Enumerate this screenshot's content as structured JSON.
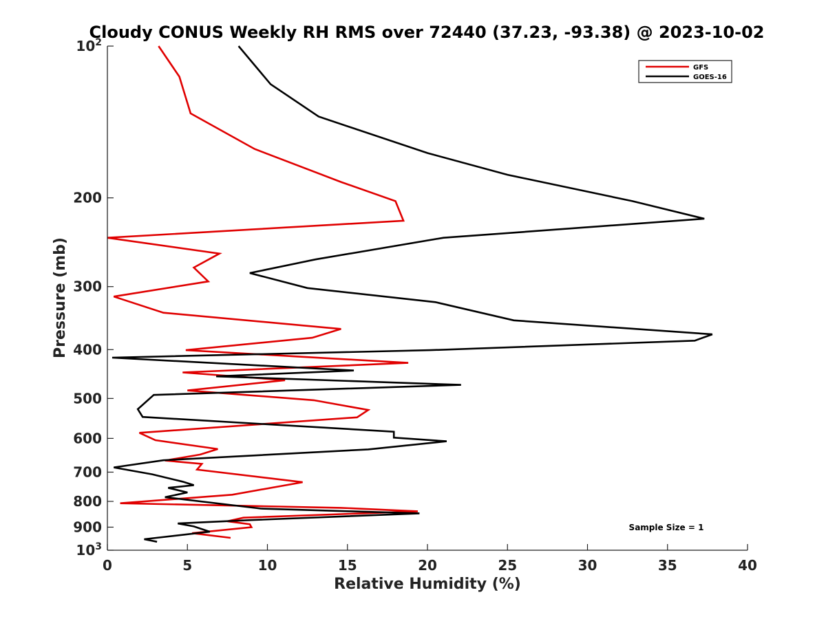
{
  "chart_data": {
    "type": "line",
    "title": "Cloudy CONUS Weekly RH RMS over 72440 (37.23, -93.38) @ 2023-10-02",
    "xlabel": "Relative Humidity (%)",
    "ylabel": "Pressure (mb)",
    "xlim": [
      0,
      40
    ],
    "ylim": [
      1000,
      100
    ],
    "y_scale": "log",
    "x_ticks": [
      "0",
      "5",
      "10",
      "15",
      "20",
      "25",
      "30",
      "35",
      "40"
    ],
    "y_ticks": [
      {
        "value": 100,
        "label": "10",
        "sup": "2"
      },
      {
        "value": 200,
        "label": "200",
        "sup": ""
      },
      {
        "value": 300,
        "label": "300",
        "sup": ""
      },
      {
        "value": 400,
        "label": "400",
        "sup": ""
      },
      {
        "value": 500,
        "label": "500",
        "sup": ""
      },
      {
        "value": 600,
        "label": "600",
        "sup": ""
      },
      {
        "value": 700,
        "label": "700",
        "sup": ""
      },
      {
        "value": 800,
        "label": "800",
        "sup": ""
      },
      {
        "value": 900,
        "label": "900",
        "sup": ""
      },
      {
        "value": 1000,
        "label": "10",
        "sup": "3"
      }
    ],
    "legend_position": "top-right",
    "grid": false,
    "annotation": "Sample Size = 1",
    "series": [
      {
        "name": "GFS",
        "color": "#e00000",
        "points": [
          [
            3.2,
            100
          ],
          [
            4.5,
            115
          ],
          [
            5.2,
            136
          ],
          [
            9.2,
            160
          ],
          [
            14.6,
            186
          ],
          [
            18.0,
            203
          ],
          [
            18.5,
            222
          ],
          [
            0.0,
            240
          ],
          [
            7.0,
            258
          ],
          [
            5.4,
            275
          ],
          [
            6.3,
            293
          ],
          [
            0.4,
            314
          ],
          [
            3.5,
            338
          ],
          [
            14.6,
            364
          ],
          [
            12.8,
            379
          ],
          [
            4.9,
            401
          ],
          [
            18.8,
            425
          ],
          [
            4.7,
            444
          ],
          [
            11.1,
            460
          ],
          [
            5.0,
            482
          ],
          [
            12.9,
            504
          ],
          [
            16.3,
            527
          ],
          [
            15.6,
            545
          ],
          [
            2.0,
            585
          ],
          [
            3.0,
            605
          ],
          [
            6.9,
            630
          ],
          [
            5.8,
            646
          ],
          [
            3.6,
            664
          ],
          [
            5.9,
            674
          ],
          [
            5.6,
            692
          ],
          [
            12.2,
            733
          ],
          [
            7.8,
            776
          ],
          [
            0.8,
            807
          ],
          [
            14.6,
            824
          ],
          [
            19.4,
            837
          ],
          [
            8.5,
            862
          ],
          [
            7.5,
            876
          ],
          [
            8.9,
            888
          ],
          [
            9.0,
            900
          ],
          [
            5.3,
            925
          ],
          [
            7.7,
            945
          ]
        ]
      },
      {
        "name": "GOES-16",
        "color": "#000000",
        "points": [
          [
            8.2,
            100
          ],
          [
            10.2,
            119
          ],
          [
            13.2,
            138
          ],
          [
            20.0,
            163
          ],
          [
            25.0,
            180
          ],
          [
            32.8,
            203
          ],
          [
            37.3,
            220
          ],
          [
            21.0,
            240
          ],
          [
            13.0,
            265
          ],
          [
            8.9,
            282
          ],
          [
            12.5,
            302
          ],
          [
            20.5,
            322
          ],
          [
            25.4,
            350
          ],
          [
            37.8,
            373
          ],
          [
            36.7,
            384
          ],
          [
            20.2,
            401
          ],
          [
            0.3,
            415
          ],
          [
            15.4,
            440
          ],
          [
            6.8,
            452
          ],
          [
            22.1,
            470
          ],
          [
            2.9,
            492
          ],
          [
            1.9,
            525
          ],
          [
            2.2,
            544
          ],
          [
            17.9,
            582
          ],
          [
            17.9,
            598
          ],
          [
            21.2,
            608
          ],
          [
            16.3,
            631
          ],
          [
            3.5,
            663
          ],
          [
            0.4,
            685
          ],
          [
            2.8,
            707
          ],
          [
            4.7,
            731
          ],
          [
            5.4,
            743
          ],
          [
            3.8,
            752
          ],
          [
            5.0,
            768
          ],
          [
            3.6,
            785
          ],
          [
            9.6,
            827
          ],
          [
            19.5,
            845
          ],
          [
            8.7,
            872
          ],
          [
            4.4,
            885
          ],
          [
            5.4,
            897
          ],
          [
            6.4,
            919
          ],
          [
            2.3,
            951
          ],
          [
            3.1,
            962
          ]
        ]
      }
    ]
  }
}
